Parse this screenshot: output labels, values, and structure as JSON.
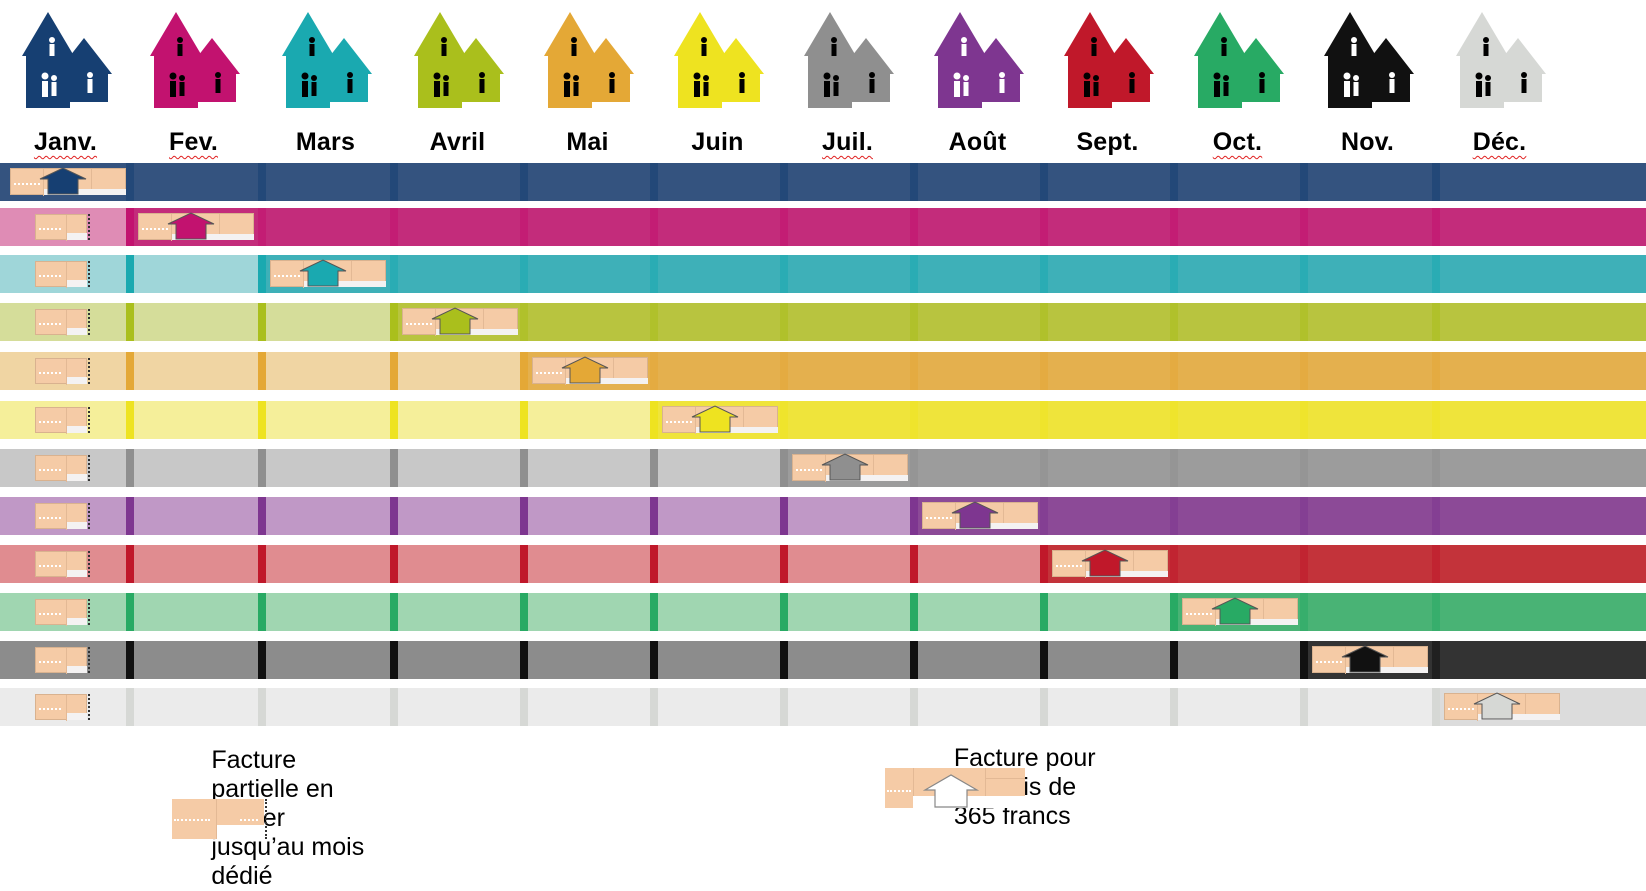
{
  "months": [
    {
      "label": "Janv.",
      "color": "#163f72",
      "light": "#3a5a8a",
      "spell": true
    },
    {
      "label": "Fev.",
      "color": "#c2126f",
      "light": "#df8cb5",
      "spell": true
    },
    {
      "label": "Mars",
      "color": "#1aa9b0",
      "light": "#9fd6d9",
      "spell": false
    },
    {
      "label": "Avril",
      "color": "#aabf1c",
      "light": "#d5dd9a",
      "spell": false
    },
    {
      "label": "Mai",
      "color": "#e4a836",
      "light": "#f0d5a3",
      "spell": false
    },
    {
      "label": "Juin",
      "color": "#eee320",
      "light": "#f5ef9a",
      "spell": false
    },
    {
      "label": "Juil.",
      "color": "#8f8f8f",
      "light": "#c8c8c8",
      "spell": true
    },
    {
      "label": "Août",
      "color": "#7e3690",
      "light": "#c098c6",
      "spell": false
    },
    {
      "label": "Sept.",
      "color": "#c0182a",
      "light": "#e08c90",
      "spell": false
    },
    {
      "label": "Oct.",
      "color": "#28aa64",
      "light": "#a0d6b1",
      "spell": true
    },
    {
      "label": "Nov.",
      "color": "#111111",
      "light": "#8c8c8c",
      "spell": false
    },
    {
      "label": "Déc.",
      "color": "#d6d8d5",
      "light": "#ebebeb",
      "spell": true
    }
  ],
  "row_full_colors": [
    "#34537f",
    "#c32c7b",
    "#3eb0b8",
    "#b8c43f",
    "#e4b04e",
    "#efe43b",
    "#9c9c9c",
    "#8c4a97",
    "#c3333a",
    "#49b375",
    "#333333",
    "#dcdcdc"
  ],
  "legend": {
    "partial_label": "Facture partielle en janvier jusqu’au mois dédié",
    "full_label": "Facture pour 12 mois de 365 francs"
  }
}
